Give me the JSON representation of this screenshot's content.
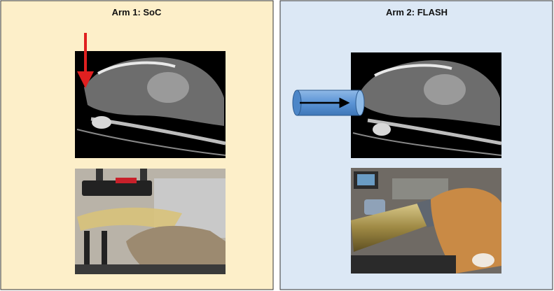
{
  "panels": [
    {
      "title": "Arm 1: SoC"
    },
    {
      "title": "Arm 2: FLASH"
    }
  ]
}
